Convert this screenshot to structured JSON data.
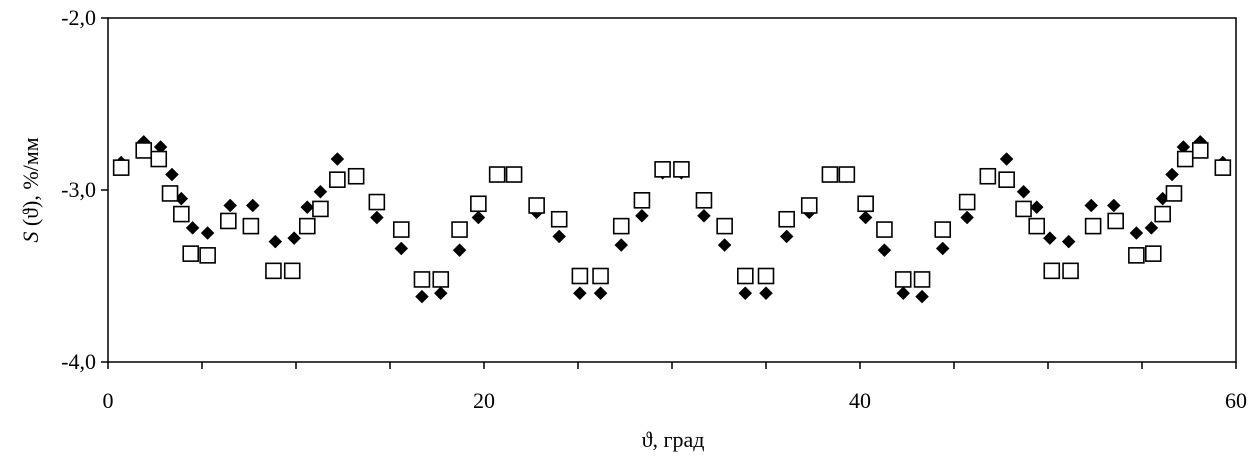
{
  "chart_data": {
    "type": "scatter",
    "xlabel": "ϑ, град",
    "ylabel_italic": "S",
    "ylabel_rest": " (ϑ), %/мм",
    "xlim": [
      0,
      60
    ],
    "ylim": [
      -4.0,
      -2.0
    ],
    "x_major_ticks": [
      0,
      20,
      40,
      60
    ],
    "x_tick_labels": [
      "0",
      "20",
      "40",
      "60"
    ],
    "x_minor_step": 5,
    "y_ticks": [
      -4.0,
      -3.0,
      -2.0
    ],
    "y_tick_labels": [
      "-4,0",
      "-3,0",
      "-2,0"
    ],
    "grid": false,
    "legend": "none",
    "series": [
      {
        "marker": "diamond-filled",
        "color": "#000000",
        "points": [
          [
            0.7,
            -2.84
          ],
          [
            1.9,
            -2.72
          ],
          [
            2.8,
            -2.75
          ],
          [
            3.4,
            -2.91
          ],
          [
            3.9,
            -3.05
          ],
          [
            4.5,
            -3.22
          ],
          [
            5.3,
            -3.25
          ],
          [
            6.5,
            -3.09
          ],
          [
            7.7,
            -3.09
          ],
          [
            8.9,
            -3.3
          ],
          [
            9.9,
            -3.28
          ],
          [
            10.6,
            -3.1
          ],
          [
            11.3,
            -3.01
          ],
          [
            12.2,
            -2.82
          ],
          [
            13.2,
            -2.93
          ],
          [
            14.3,
            -3.16
          ],
          [
            15.6,
            -3.34
          ],
          [
            16.7,
            -3.62
          ],
          [
            17.7,
            -3.6
          ],
          [
            18.7,
            -3.35
          ],
          [
            19.7,
            -3.16
          ],
          [
            20.7,
            -2.92
          ],
          [
            21.6,
            -2.92
          ],
          [
            22.8,
            -3.13
          ],
          [
            24.0,
            -3.27
          ],
          [
            25.1,
            -3.6
          ],
          [
            26.2,
            -3.6
          ],
          [
            27.3,
            -3.32
          ],
          [
            28.4,
            -3.15
          ],
          [
            29.5,
            -2.9
          ],
          [
            30.5,
            -2.9
          ],
          [
            31.7,
            -3.15
          ],
          [
            32.8,
            -3.32
          ],
          [
            33.9,
            -3.6
          ],
          [
            35.0,
            -3.6
          ],
          [
            36.1,
            -3.27
          ],
          [
            37.3,
            -3.13
          ],
          [
            38.4,
            -2.92
          ],
          [
            39.3,
            -2.92
          ],
          [
            40.3,
            -3.16
          ],
          [
            41.3,
            -3.35
          ],
          [
            42.3,
            -3.6
          ],
          [
            43.3,
            -3.62
          ],
          [
            44.4,
            -3.34
          ],
          [
            45.7,
            -3.16
          ],
          [
            46.8,
            -2.93
          ],
          [
            47.8,
            -2.82
          ],
          [
            48.7,
            -3.01
          ],
          [
            49.4,
            -3.1
          ],
          [
            50.1,
            -3.28
          ],
          [
            51.1,
            -3.3
          ],
          [
            52.3,
            -3.09
          ],
          [
            53.5,
            -3.09
          ],
          [
            54.7,
            -3.25
          ],
          [
            55.5,
            -3.22
          ],
          [
            56.1,
            -3.05
          ],
          [
            56.6,
            -2.91
          ],
          [
            57.2,
            -2.75
          ],
          [
            58.1,
            -2.72
          ],
          [
            59.3,
            -2.84
          ]
        ]
      },
      {
        "marker": "square-open",
        "color": "#000000",
        "points": [
          [
            0.7,
            -2.87
          ],
          [
            1.9,
            -2.77
          ],
          [
            2.7,
            -2.82
          ],
          [
            3.3,
            -3.02
          ],
          [
            3.9,
            -3.14
          ],
          [
            4.4,
            -3.37
          ],
          [
            5.3,
            -3.38
          ],
          [
            6.4,
            -3.18
          ],
          [
            7.6,
            -3.21
          ],
          [
            8.8,
            -3.47
          ],
          [
            9.8,
            -3.47
          ],
          [
            10.6,
            -3.21
          ],
          [
            11.3,
            -3.11
          ],
          [
            12.2,
            -2.94
          ],
          [
            13.2,
            -2.92
          ],
          [
            14.3,
            -3.07
          ],
          [
            15.6,
            -3.23
          ],
          [
            16.7,
            -3.52
          ],
          [
            17.7,
            -3.52
          ],
          [
            18.7,
            -3.23
          ],
          [
            19.7,
            -3.08
          ],
          [
            20.7,
            -2.91
          ],
          [
            21.6,
            -2.91
          ],
          [
            22.8,
            -3.09
          ],
          [
            24.0,
            -3.17
          ],
          [
            25.1,
            -3.5
          ],
          [
            26.2,
            -3.5
          ],
          [
            27.3,
            -3.21
          ],
          [
            28.4,
            -3.06
          ],
          [
            29.5,
            -2.88
          ],
          [
            30.5,
            -2.88
          ],
          [
            31.7,
            -3.06
          ],
          [
            32.8,
            -3.21
          ],
          [
            33.9,
            -3.5
          ],
          [
            35.0,
            -3.5
          ],
          [
            36.1,
            -3.17
          ],
          [
            37.3,
            -3.09
          ],
          [
            38.4,
            -2.91
          ],
          [
            39.3,
            -2.91
          ],
          [
            40.3,
            -3.08
          ],
          [
            41.3,
            -3.23
          ],
          [
            42.3,
            -3.52
          ],
          [
            43.3,
            -3.52
          ],
          [
            44.4,
            -3.23
          ],
          [
            45.7,
            -3.07
          ],
          [
            46.8,
            -2.92
          ],
          [
            47.8,
            -2.94
          ],
          [
            48.7,
            -3.11
          ],
          [
            49.4,
            -3.21
          ],
          [
            50.2,
            -3.47
          ],
          [
            51.2,
            -3.47
          ],
          [
            52.4,
            -3.21
          ],
          [
            53.6,
            -3.18
          ],
          [
            54.7,
            -3.38
          ],
          [
            55.6,
            -3.37
          ],
          [
            56.1,
            -3.14
          ],
          [
            56.7,
            -3.02
          ],
          [
            57.3,
            -2.82
          ],
          [
            58.1,
            -2.77
          ],
          [
            59.3,
            -2.87
          ]
        ]
      }
    ]
  }
}
